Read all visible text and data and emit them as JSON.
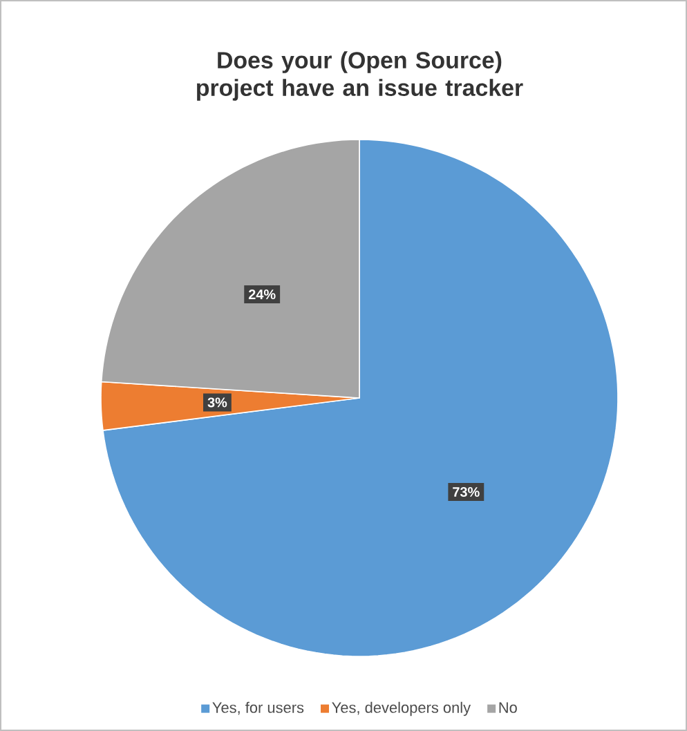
{
  "chart_data": {
    "type": "pie",
    "title": "Does your (Open Source) project have an issue tracker",
    "categories": [
      "Yes, for users",
      "Yes, developers only",
      "No"
    ],
    "values": [
      73,
      3,
      24
    ],
    "colors": [
      "#5b9bd5",
      "#ed7d31",
      "#a5a5a5"
    ],
    "value_labels": [
      "73%",
      "3%",
      "24%"
    ],
    "legend": "bottom"
  }
}
